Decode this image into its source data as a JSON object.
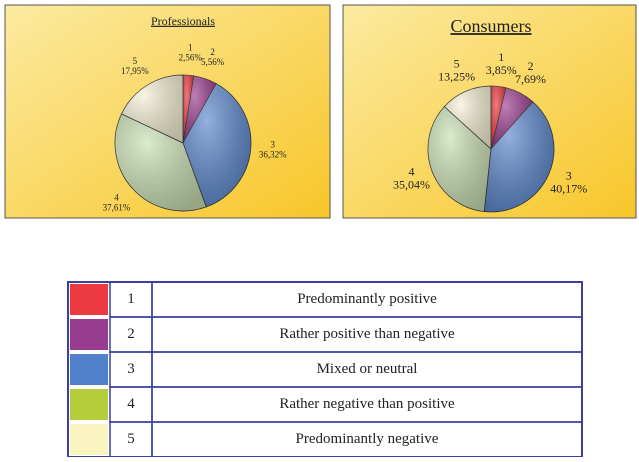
{
  "chart_data": [
    {
      "type": "pie",
      "title": "Professionals",
      "categories": [
        "1",
        "2",
        "3",
        "4",
        "5"
      ],
      "values": [
        2.56,
        5.56,
        36.32,
        37.61,
        17.95
      ],
      "value_labels": [
        "2,56%",
        "5,56%",
        "36,32%",
        "37,61%",
        "17,95%"
      ],
      "colors": [
        "#e8333a",
        "#9a3c8e",
        "#5b86cc",
        "#c9dfb2",
        "#f7f2d6"
      ]
    },
    {
      "type": "pie",
      "title": "Consumers",
      "categories": [
        "1",
        "2",
        "3",
        "4",
        "5"
      ],
      "values": [
        3.85,
        7.69,
        40.17,
        35.04,
        13.25
      ],
      "value_labels": [
        "3,85%",
        "7,69%",
        "40,17%",
        "35,04%",
        "13,25%"
      ],
      "colors": [
        "#e8333a",
        "#9a3c8e",
        "#5b86cc",
        "#c9dfb2",
        "#f7f2d6"
      ]
    }
  ],
  "legend": {
    "rows": [
      {
        "color": "#ec3a40",
        "number": "1",
        "label": "Predominantly positive"
      },
      {
        "color": "#973c90",
        "number": "2",
        "label": "Rather positive than negative"
      },
      {
        "color": "#4f80c9",
        "number": "3",
        "label": "Mixed or neutral"
      },
      {
        "color": "#b6cd3b",
        "number": "4",
        "label": "Rather negative than positive"
      },
      {
        "color": "#faf5c0",
        "number": "5",
        "label": "Predominantly negative"
      }
    ]
  }
}
